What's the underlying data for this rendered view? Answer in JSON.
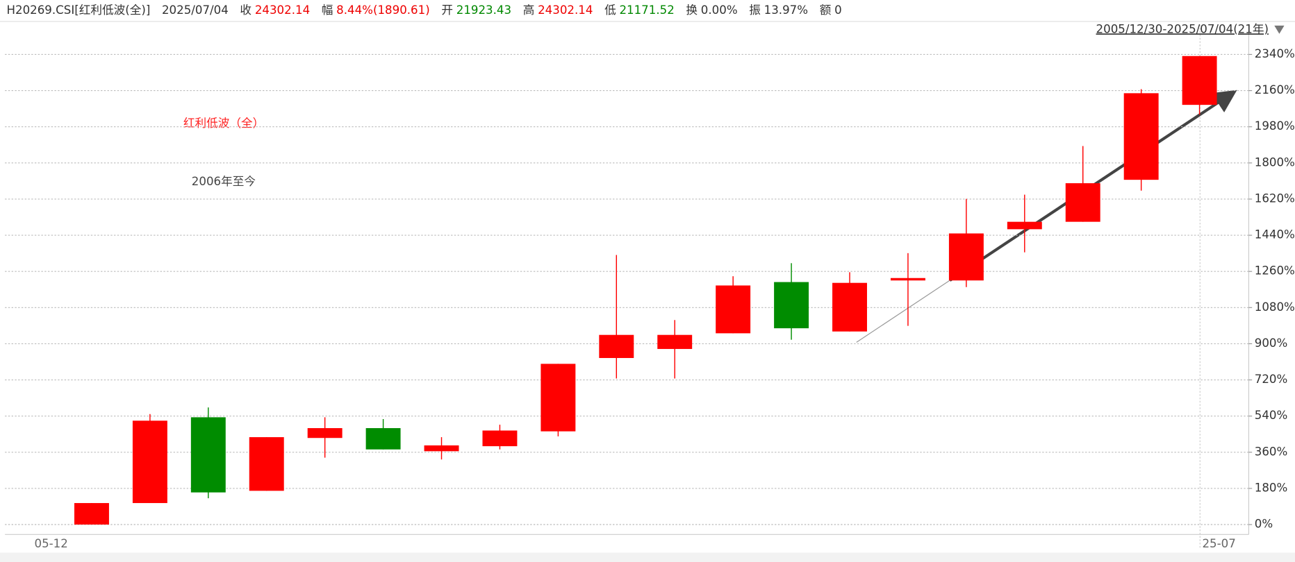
{
  "header": {
    "code": "H20269.CSI[红利低波(全)]",
    "date": "2025/07/04",
    "fields": [
      {
        "label": "收",
        "value": "24302.14"
      },
      {
        "label": "幅",
        "value": "8.44%(1890.61)"
      },
      {
        "label": "开",
        "value": "21923.43"
      },
      {
        "label": "高",
        "value": "24302.14"
      },
      {
        "label": "低",
        "value": "21171.52"
      },
      {
        "label": "换",
        "value": "0.00%"
      },
      {
        "label": "振",
        "value": "13.97%"
      },
      {
        "label": "额",
        "value": "0"
      }
    ],
    "range": "2005/12/30-2025/07/04(21年)"
  },
  "chart_data": {
    "type": "candlestick",
    "title": "红利低波（全）",
    "subtitle": "2006年至今",
    "x_axis_labels": [
      "05-12",
      "25-07"
    ],
    "candles": [
      {
        "open": 0,
        "close": 107,
        "high": 107,
        "low": 0
      },
      {
        "open": 107,
        "close": 517,
        "high": 550,
        "low": 107
      },
      {
        "open": 534,
        "close": 160,
        "high": 583,
        "low": 131
      },
      {
        "open": 168,
        "close": 435,
        "high": 435,
        "low": 168
      },
      {
        "open": 431,
        "close": 480,
        "high": 534,
        "low": 333
      },
      {
        "open": 480,
        "close": 374,
        "high": 525,
        "low": 374
      },
      {
        "open": 365,
        "close": 394,
        "high": 435,
        "low": 324
      },
      {
        "open": 390,
        "close": 468,
        "high": 497,
        "low": 374
      },
      {
        "open": 464,
        "close": 800,
        "high": 800,
        "low": 439
      },
      {
        "open": 829,
        "close": 944,
        "high": 1342,
        "low": 727
      },
      {
        "open": 874,
        "close": 944,
        "high": 1018,
        "low": 727
      },
      {
        "open": 952,
        "close": 1190,
        "high": 1236,
        "low": 952
      },
      {
        "open": 1207,
        "close": 977,
        "high": 1301,
        "low": 920
      },
      {
        "open": 961,
        "close": 1203,
        "high": 1256,
        "low": 961
      },
      {
        "open": 1215,
        "close": 1227,
        "high": 1351,
        "low": 989
      },
      {
        "open": 1215,
        "close": 1449,
        "high": 1621,
        "low": 1182
      },
      {
        "open": 1470,
        "close": 1507,
        "high": 1642,
        "low": 1355
      },
      {
        "open": 1507,
        "close": 1699,
        "high": 1884,
        "low": 1507
      },
      {
        "open": 1716,
        "close": 2147,
        "high": 2167,
        "low": 1662
      },
      {
        "open": 2089,
        "close": 2332,
        "high": 2332,
        "low": 2040
      }
    ],
    "up_color": "#ff0000",
    "down_color": "#008c00",
    "ylim": [
      0,
      2340
    ],
    "yticks": [
      {
        "value": 0,
        "label": "0%"
      },
      {
        "value": 180,
        "label": "180%"
      },
      {
        "value": 360,
        "label": "360%"
      },
      {
        "value": 540,
        "label": "540%"
      },
      {
        "value": 720,
        "label": "720%"
      },
      {
        "value": 900,
        "label": "900%"
      },
      {
        "value": 1080,
        "label": "1080%"
      },
      {
        "value": 1260,
        "label": "1260%"
      },
      {
        "value": 1440,
        "label": "1440%"
      },
      {
        "value": 1620,
        "label": "1620%"
      },
      {
        "value": 1800,
        "label": "1800%"
      },
      {
        "value": 1980,
        "label": "1980%"
      },
      {
        "value": 2160,
        "label": "2160%"
      },
      {
        "value": 2340,
        "label": "2340%"
      }
    ],
    "grid": true
  }
}
